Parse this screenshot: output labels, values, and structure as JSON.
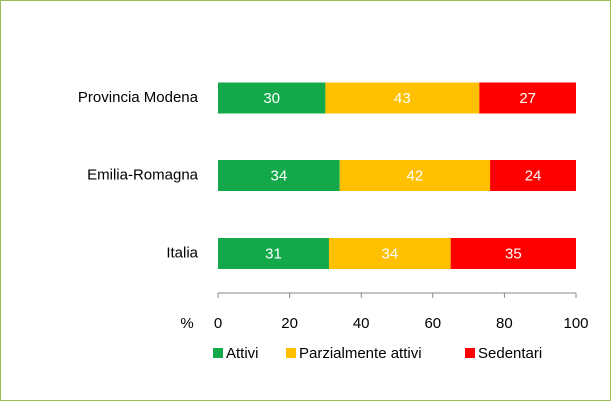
{
  "chart_data": {
    "type": "bar",
    "orientation": "horizontal",
    "stacked": true,
    "categories": [
      "Provincia Modena",
      "Emilia-Romagna",
      "Italia"
    ],
    "series": [
      {
        "name": "Attivi",
        "color": "#13a94a",
        "values": [
          30,
          34,
          31
        ]
      },
      {
        "name": "Parzialmente attivi",
        "color": "#ffc000",
        "values": [
          43,
          42,
          34
        ]
      },
      {
        "name": "Sedentari",
        "color": "#ff0000",
        "values": [
          27,
          24,
          35
        ]
      }
    ],
    "xlabel": "%",
    "xlim": [
      0,
      100
    ],
    "xticks": [
      0,
      20,
      40,
      60,
      80,
      100
    ],
    "legend": "bottom"
  }
}
